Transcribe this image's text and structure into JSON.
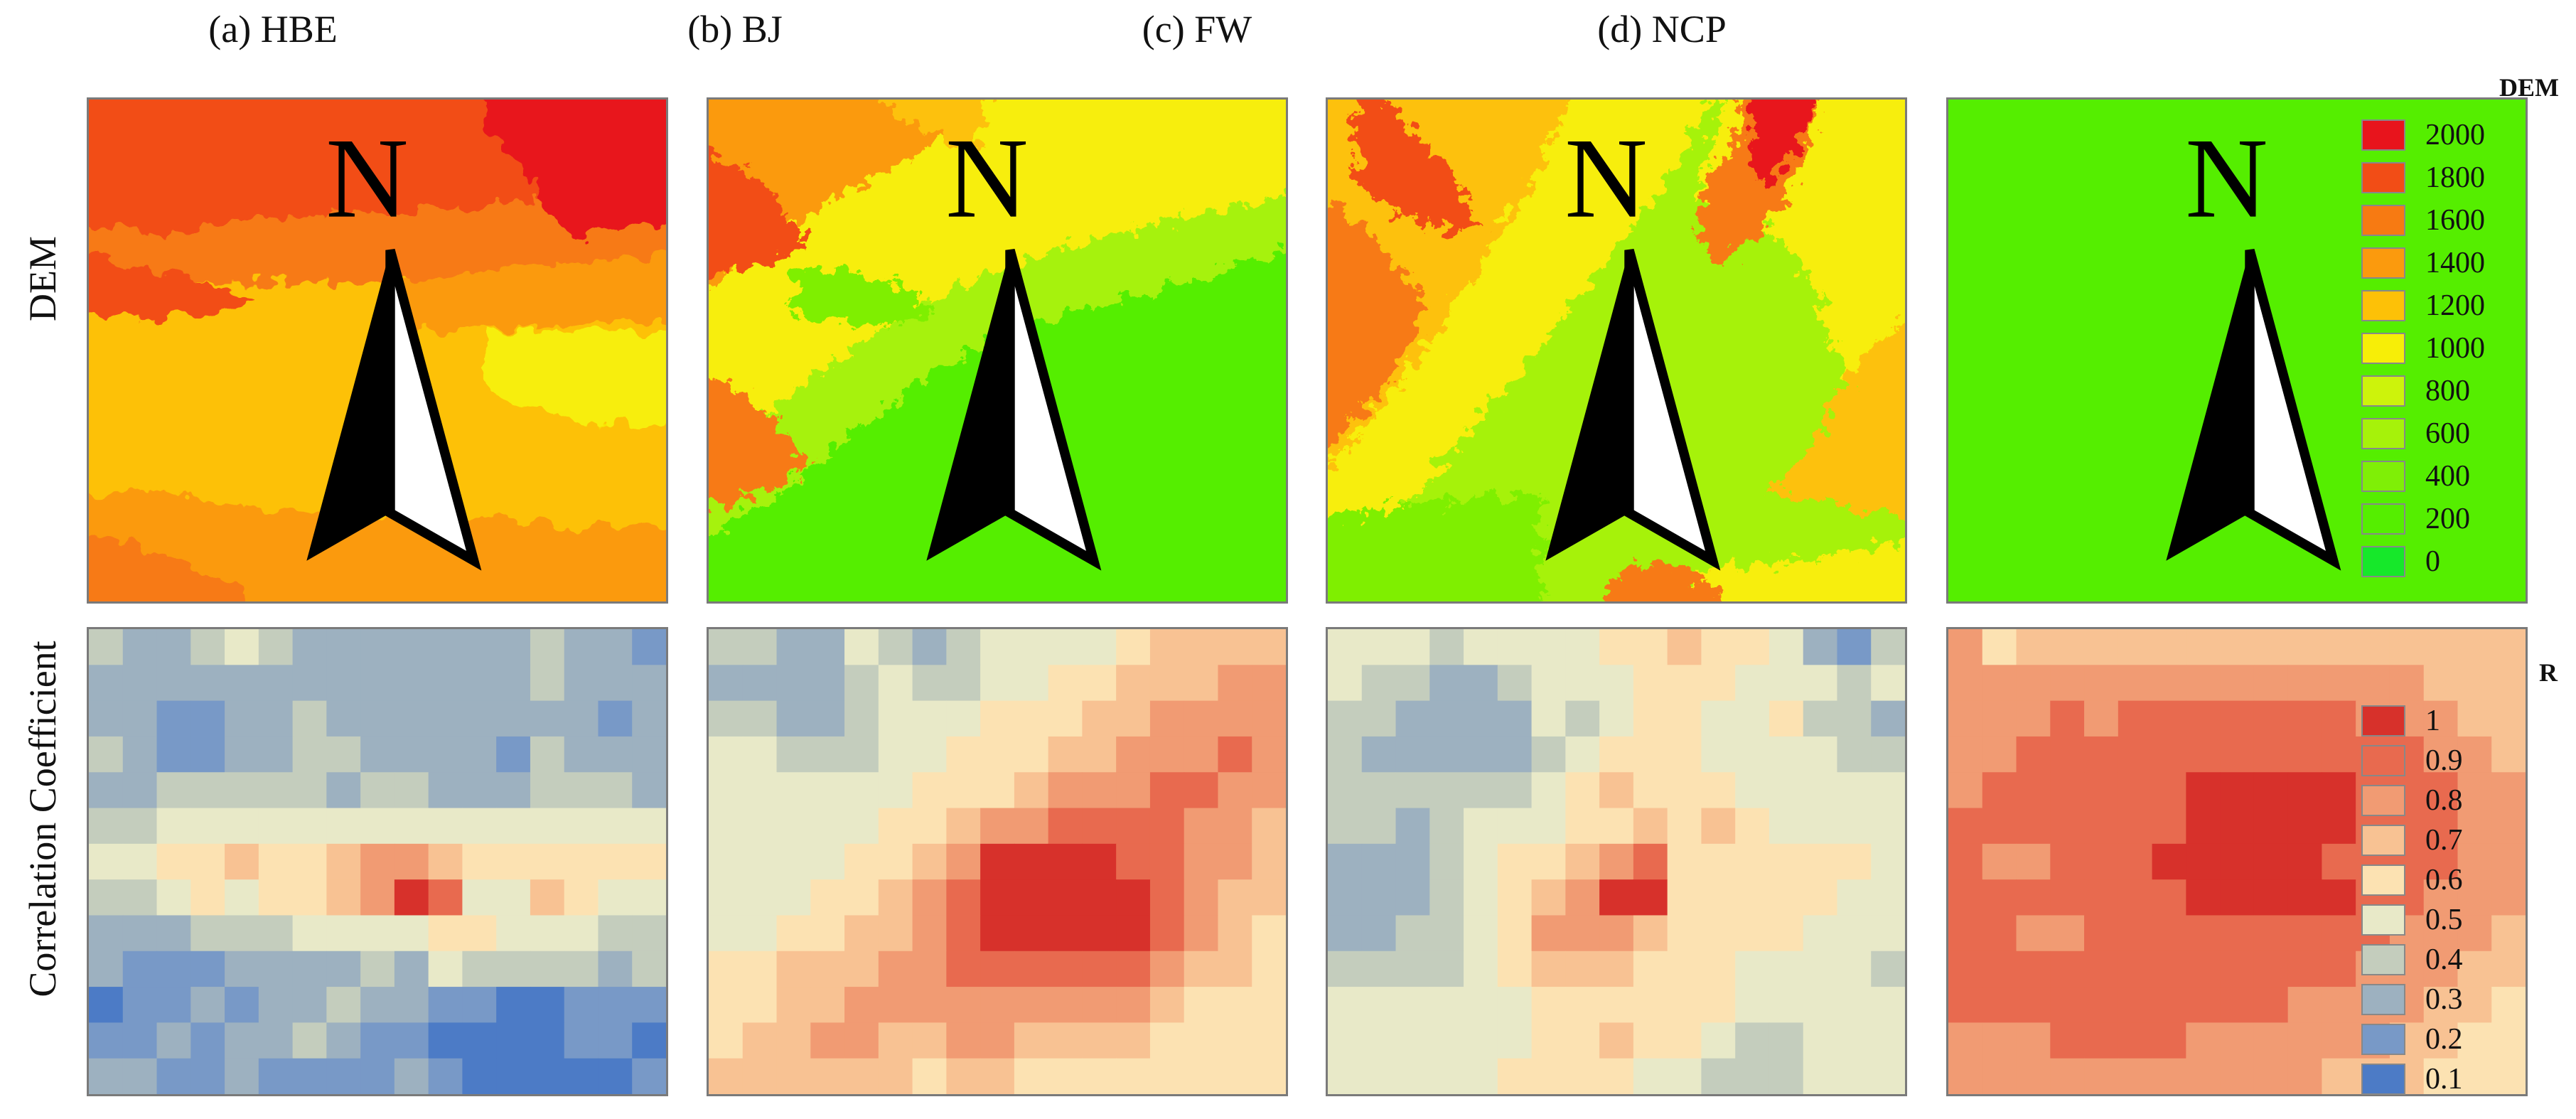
{
  "column_titles": [
    "(a) HBE",
    "(b) BJ",
    "(c) FW",
    "(d) NCP"
  ],
  "row_labels": {
    "dem": "DEM",
    "corr": "Correlation Coefficient"
  },
  "north_label": "N",
  "dem_legend": {
    "title": "DEM",
    "items": [
      {
        "label": "2000",
        "color": "#e8141c"
      },
      {
        "label": "1800",
        "color": "#f24d16"
      },
      {
        "label": "1600",
        "color": "#f77a12"
      },
      {
        "label": "1400",
        "color": "#fb9a0d"
      },
      {
        "label": "1200",
        "color": "#fdc107"
      },
      {
        "label": "1000",
        "color": "#f7ee07"
      },
      {
        "label": "800",
        "color": "#cdf30b"
      },
      {
        "label": "600",
        "color": "#a6f20a"
      },
      {
        "label": "400",
        "color": "#7fef06"
      },
      {
        "label": "200",
        "color": "#55ee00"
      },
      {
        "label": "0",
        "color": "#16e82a"
      }
    ]
  },
  "r_legend": {
    "title": "R",
    "items": [
      {
        "label": "1",
        "color": "#d7312b"
      },
      {
        "label": "0.9",
        "color": "#e86a4f"
      },
      {
        "label": "0.8",
        "color": "#f19b73"
      },
      {
        "label": "0.7",
        "color": "#f8c293"
      },
      {
        "label": "0.6",
        "color": "#fce2b2"
      },
      {
        "label": "0.5",
        "color": "#e8e9c8"
      },
      {
        "label": "0.4",
        "color": "#c4cdbd"
      },
      {
        "label": "0.3",
        "color": "#9db1c0"
      },
      {
        "label": "0.2",
        "color": "#7899c7"
      },
      {
        "label": "0.1",
        "color": "#4c7bc6"
      }
    ]
  },
  "chart_data": [
    {
      "type": "heatmap",
      "title": "(a) HBE",
      "variable": "R",
      "rows": 13,
      "cols": 17,
      "values": [
        [
          0.4,
          0.3,
          0.3,
          0.4,
          0.5,
          0.4,
          0.3,
          0.3,
          0.3,
          0.3,
          0.3,
          0.3,
          0.3,
          0.4,
          0.3,
          0.3,
          0.2
        ],
        [
          0.3,
          0.3,
          0.3,
          0.3,
          0.3,
          0.3,
          0.3,
          0.3,
          0.3,
          0.3,
          0.3,
          0.3,
          0.3,
          0.4,
          0.3,
          0.3,
          0.3
        ],
        [
          0.3,
          0.3,
          0.2,
          0.2,
          0.3,
          0.3,
          0.4,
          0.3,
          0.3,
          0.3,
          0.3,
          0.3,
          0.3,
          0.3,
          0.3,
          0.2,
          0.3
        ],
        [
          0.4,
          0.3,
          0.2,
          0.2,
          0.3,
          0.3,
          0.4,
          0.4,
          0.3,
          0.3,
          0.3,
          0.3,
          0.2,
          0.4,
          0.3,
          0.3,
          0.3
        ],
        [
          0.3,
          0.3,
          0.4,
          0.4,
          0.4,
          0.4,
          0.4,
          0.3,
          0.4,
          0.4,
          0.3,
          0.3,
          0.3,
          0.4,
          0.4,
          0.4,
          0.3
        ],
        [
          0.4,
          0.4,
          0.5,
          0.5,
          0.5,
          0.5,
          0.5,
          0.5,
          0.5,
          0.5,
          0.5,
          0.5,
          0.5,
          0.5,
          0.5,
          0.5,
          0.5
        ],
        [
          0.5,
          0.5,
          0.6,
          0.6,
          0.7,
          0.6,
          0.6,
          0.7,
          0.8,
          0.8,
          0.7,
          0.6,
          0.6,
          0.6,
          0.6,
          0.6,
          0.6
        ],
        [
          0.4,
          0.4,
          0.5,
          0.6,
          0.5,
          0.6,
          0.6,
          0.7,
          0.8,
          1.0,
          0.9,
          0.5,
          0.5,
          0.7,
          0.6,
          0.5,
          0.5
        ],
        [
          0.3,
          0.3,
          0.3,
          0.4,
          0.4,
          0.4,
          0.5,
          0.5,
          0.5,
          0.5,
          0.6,
          0.6,
          0.5,
          0.5,
          0.5,
          0.4,
          0.4
        ],
        [
          0.3,
          0.2,
          0.2,
          0.2,
          0.3,
          0.3,
          0.3,
          0.3,
          0.4,
          0.3,
          0.5,
          0.4,
          0.4,
          0.4,
          0.4,
          0.3,
          0.4
        ],
        [
          0.1,
          0.2,
          0.2,
          0.3,
          0.2,
          0.3,
          0.3,
          0.4,
          0.3,
          0.3,
          0.2,
          0.2,
          0.1,
          0.1,
          0.2,
          0.2,
          0.2
        ],
        [
          0.2,
          0.2,
          0.3,
          0.2,
          0.3,
          0.3,
          0.4,
          0.3,
          0.2,
          0.2,
          0.1,
          0.1,
          0.1,
          0.1,
          0.2,
          0.2,
          0.1
        ],
        [
          0.3,
          0.3,
          0.2,
          0.2,
          0.3,
          0.2,
          0.2,
          0.2,
          0.2,
          0.3,
          0.2,
          0.1,
          0.1,
          0.1,
          0.1,
          0.1,
          0.2
        ]
      ]
    },
    {
      "type": "heatmap",
      "title": "(b) BJ",
      "variable": "R",
      "rows": 13,
      "cols": 17,
      "values": [
        [
          0.4,
          0.4,
          0.3,
          0.3,
          0.5,
          0.4,
          0.3,
          0.4,
          0.5,
          0.5,
          0.5,
          0.5,
          0.6,
          0.7,
          0.7,
          0.7,
          0.7
        ],
        [
          0.3,
          0.3,
          0.3,
          0.3,
          0.4,
          0.5,
          0.4,
          0.4,
          0.5,
          0.5,
          0.6,
          0.6,
          0.7,
          0.7,
          0.7,
          0.8,
          0.8
        ],
        [
          0.4,
          0.4,
          0.3,
          0.3,
          0.4,
          0.5,
          0.5,
          0.5,
          0.6,
          0.6,
          0.6,
          0.7,
          0.7,
          0.8,
          0.8,
          0.8,
          0.8
        ],
        [
          0.5,
          0.5,
          0.4,
          0.4,
          0.4,
          0.5,
          0.5,
          0.6,
          0.6,
          0.6,
          0.7,
          0.7,
          0.8,
          0.8,
          0.8,
          0.9,
          0.8
        ],
        [
          0.5,
          0.5,
          0.5,
          0.5,
          0.5,
          0.5,
          0.6,
          0.6,
          0.6,
          0.7,
          0.8,
          0.8,
          0.8,
          0.9,
          0.9,
          0.8,
          0.8
        ],
        [
          0.5,
          0.5,
          0.5,
          0.5,
          0.5,
          0.6,
          0.6,
          0.7,
          0.8,
          0.8,
          0.9,
          0.9,
          0.9,
          0.9,
          0.8,
          0.8,
          0.7
        ],
        [
          0.5,
          0.5,
          0.5,
          0.5,
          0.6,
          0.6,
          0.7,
          0.8,
          1.0,
          1.0,
          1.0,
          1.0,
          0.9,
          0.9,
          0.8,
          0.8,
          0.7
        ],
        [
          0.5,
          0.5,
          0.5,
          0.6,
          0.6,
          0.7,
          0.8,
          0.9,
          1.0,
          1.0,
          1.0,
          1.0,
          1.0,
          0.9,
          0.8,
          0.7,
          0.7
        ],
        [
          0.5,
          0.5,
          0.6,
          0.6,
          0.7,
          0.7,
          0.8,
          0.9,
          1.0,
          1.0,
          1.0,
          1.0,
          1.0,
          0.9,
          0.8,
          0.7,
          0.6
        ],
        [
          0.6,
          0.6,
          0.7,
          0.7,
          0.7,
          0.8,
          0.8,
          0.9,
          0.9,
          0.9,
          0.9,
          0.9,
          0.9,
          0.8,
          0.7,
          0.7,
          0.6
        ],
        [
          0.6,
          0.6,
          0.7,
          0.7,
          0.8,
          0.8,
          0.8,
          0.8,
          0.8,
          0.8,
          0.8,
          0.8,
          0.8,
          0.7,
          0.6,
          0.6,
          0.6
        ],
        [
          0.6,
          0.7,
          0.7,
          0.8,
          0.8,
          0.7,
          0.7,
          0.8,
          0.8,
          0.7,
          0.7,
          0.7,
          0.7,
          0.6,
          0.6,
          0.6,
          0.6
        ],
        [
          0.7,
          0.7,
          0.7,
          0.7,
          0.7,
          0.7,
          0.6,
          0.7,
          0.7,
          0.6,
          0.6,
          0.6,
          0.6,
          0.6,
          0.6,
          0.6,
          0.6
        ]
      ]
    },
    {
      "type": "heatmap",
      "title": "(c) FW",
      "variable": "R",
      "rows": 13,
      "cols": 17,
      "values": [
        [
          0.5,
          0.5,
          0.5,
          0.4,
          0.5,
          0.5,
          0.5,
          0.5,
          0.6,
          0.6,
          0.7,
          0.6,
          0.6,
          0.5,
          0.3,
          0.2,
          0.4
        ],
        [
          0.5,
          0.4,
          0.4,
          0.3,
          0.3,
          0.4,
          0.5,
          0.5,
          0.5,
          0.6,
          0.6,
          0.6,
          0.5,
          0.5,
          0.5,
          0.4,
          0.5
        ],
        [
          0.4,
          0.4,
          0.3,
          0.3,
          0.3,
          0.3,
          0.5,
          0.4,
          0.5,
          0.6,
          0.6,
          0.5,
          0.5,
          0.6,
          0.4,
          0.4,
          0.3
        ],
        [
          0.4,
          0.3,
          0.3,
          0.3,
          0.3,
          0.3,
          0.4,
          0.5,
          0.6,
          0.6,
          0.6,
          0.5,
          0.5,
          0.5,
          0.5,
          0.4,
          0.4
        ],
        [
          0.4,
          0.4,
          0.4,
          0.4,
          0.4,
          0.4,
          0.5,
          0.6,
          0.7,
          0.6,
          0.6,
          0.6,
          0.5,
          0.5,
          0.5,
          0.5,
          0.5
        ],
        [
          0.4,
          0.4,
          0.3,
          0.4,
          0.5,
          0.5,
          0.5,
          0.6,
          0.6,
          0.7,
          0.6,
          0.7,
          0.6,
          0.5,
          0.5,
          0.5,
          0.5
        ],
        [
          0.3,
          0.3,
          0.3,
          0.4,
          0.5,
          0.6,
          0.6,
          0.7,
          0.8,
          0.9,
          0.6,
          0.6,
          0.6,
          0.6,
          0.6,
          0.6,
          0.5
        ],
        [
          0.3,
          0.3,
          0.3,
          0.4,
          0.5,
          0.6,
          0.7,
          0.8,
          1.0,
          1.0,
          0.6,
          0.6,
          0.6,
          0.6,
          0.6,
          0.5,
          0.5
        ],
        [
          0.3,
          0.3,
          0.4,
          0.4,
          0.5,
          0.6,
          0.8,
          0.8,
          0.8,
          0.7,
          0.6,
          0.6,
          0.6,
          0.6,
          0.5,
          0.5,
          0.5
        ],
        [
          0.4,
          0.4,
          0.4,
          0.4,
          0.5,
          0.6,
          0.7,
          0.7,
          0.7,
          0.6,
          0.6,
          0.6,
          0.5,
          0.5,
          0.5,
          0.5,
          0.4
        ],
        [
          0.5,
          0.5,
          0.5,
          0.5,
          0.5,
          0.5,
          0.6,
          0.6,
          0.6,
          0.6,
          0.6,
          0.6,
          0.5,
          0.5,
          0.5,
          0.5,
          0.5
        ],
        [
          0.5,
          0.5,
          0.5,
          0.5,
          0.5,
          0.5,
          0.6,
          0.6,
          0.7,
          0.6,
          0.6,
          0.5,
          0.4,
          0.4,
          0.5,
          0.5,
          0.5
        ],
        [
          0.5,
          0.5,
          0.5,
          0.5,
          0.5,
          0.6,
          0.6,
          0.6,
          0.6,
          0.5,
          0.5,
          0.4,
          0.4,
          0.4,
          0.5,
          0.5,
          0.5
        ]
      ]
    },
    {
      "type": "heatmap",
      "title": "(d) NCP",
      "variable": "R",
      "rows": 13,
      "cols": 17,
      "values": [
        [
          0.8,
          0.6,
          0.7,
          0.7,
          0.7,
          0.7,
          0.7,
          0.7,
          0.7,
          0.7,
          0.7,
          0.7,
          0.7,
          0.7,
          0.7,
          0.7,
          0.7
        ],
        [
          0.8,
          0.8,
          0.8,
          0.8,
          0.8,
          0.8,
          0.8,
          0.8,
          0.8,
          0.8,
          0.8,
          0.8,
          0.8,
          0.8,
          0.7,
          0.7,
          0.7
        ],
        [
          0.8,
          0.8,
          0.8,
          0.9,
          0.8,
          0.9,
          0.9,
          0.9,
          0.9,
          0.9,
          0.9,
          0.9,
          0.8,
          0.8,
          0.8,
          0.7,
          0.7
        ],
        [
          0.8,
          0.8,
          0.9,
          0.9,
          0.9,
          0.9,
          0.9,
          0.9,
          0.9,
          0.9,
          0.9,
          0.9,
          0.9,
          0.9,
          0.8,
          0.8,
          0.7
        ],
        [
          0.8,
          0.9,
          0.9,
          0.9,
          0.9,
          0.9,
          0.9,
          1.0,
          1.0,
          1.0,
          1.0,
          1.0,
          0.9,
          0.9,
          0.9,
          0.8,
          0.8
        ],
        [
          0.9,
          0.9,
          0.9,
          0.9,
          0.9,
          0.9,
          0.9,
          1.0,
          1.0,
          1.0,
          1.0,
          1.0,
          0.9,
          0.9,
          0.9,
          0.8,
          0.8
        ],
        [
          0.9,
          0.8,
          0.8,
          0.9,
          0.9,
          0.9,
          1.0,
          1.0,
          1.0,
          1.0,
          1.0,
          0.9,
          0.9,
          0.9,
          0.9,
          0.8,
          0.8
        ],
        [
          0.9,
          0.9,
          0.9,
          0.9,
          0.9,
          0.9,
          0.9,
          1.0,
          1.0,
          1.0,
          1.0,
          1.0,
          0.9,
          0.9,
          0.8,
          0.8,
          0.8
        ],
        [
          0.9,
          0.9,
          0.8,
          0.8,
          0.9,
          0.9,
          0.9,
          0.9,
          0.9,
          0.9,
          0.9,
          0.9,
          0.9,
          0.8,
          0.8,
          0.8,
          0.7
        ],
        [
          0.9,
          0.9,
          0.9,
          0.9,
          0.9,
          0.9,
          0.9,
          0.9,
          0.9,
          0.9,
          0.9,
          0.9,
          0.8,
          0.8,
          0.8,
          0.7,
          0.7
        ],
        [
          0.9,
          0.9,
          0.9,
          0.9,
          0.9,
          0.9,
          0.9,
          0.9,
          0.9,
          0.9,
          0.8,
          0.8,
          0.8,
          0.8,
          0.7,
          0.7,
          0.6
        ],
        [
          0.8,
          0.8,
          0.8,
          0.9,
          0.9,
          0.9,
          0.9,
          0.8,
          0.8,
          0.8,
          0.8,
          0.8,
          0.8,
          0.7,
          0.7,
          0.6,
          0.6
        ],
        [
          0.8,
          0.8,
          0.8,
          0.8,
          0.8,
          0.8,
          0.8,
          0.8,
          0.8,
          0.8,
          0.8,
          0.7,
          0.7,
          0.7,
          0.6,
          0.6,
          0.6
        ]
      ]
    }
  ]
}
